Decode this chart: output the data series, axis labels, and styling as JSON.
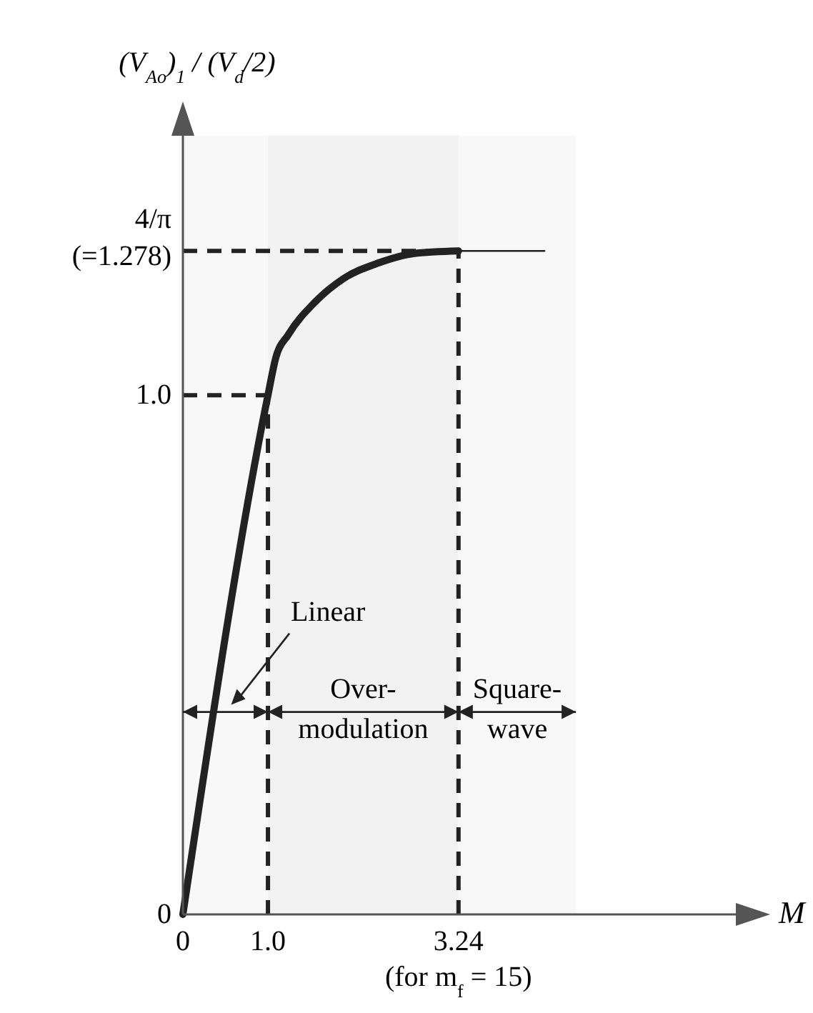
{
  "chart_data": {
    "type": "line",
    "ylabel": "(V$_{Ao}$)$_{1}$ / (V$_{d}$/2)",
    "xlabel": "M",
    "xlim": [
      0,
      6.5
    ],
    "ylim": [
      0,
      1.5
    ],
    "xticks": [
      0,
      {
        "value": 1,
        "label": "1.0"
      },
      3.24
    ],
    "yticks": [
      0,
      {
        "value": 1,
        "label": "1.0"
      },
      {
        "value": 1.278,
        "label": "4/π\n(=1.278)"
      }
    ],
    "series": [
      {
        "color": "#222222",
        "x": [
          0,
          1,
          1.09,
          1.24,
          1.55,
          1.89,
          2.3,
          2.71,
          3.24
        ],
        "values": [
          0,
          1,
          1.071,
          1.117,
          1.179,
          1.225,
          1.255,
          1.273,
          1.278
        ]
      },
      {
        "color": "#222222",
        "x": [
          3.24,
          4.25
        ],
        "values": [
          1.278,
          1.278
        ]
      }
    ],
    "ref_lines": [
      {
        "axis": "y",
        "value": 1
      },
      {
        "axis": "x",
        "value": 1
      },
      {
        "axis": "y",
        "value": 1.278
      },
      {
        "axis": "x",
        "value": 3.24
      }
    ],
    "bands": [
      {
        "axis": "x",
        "from": 0,
        "to": 1,
        "label": "Linear"
      },
      {
        "axis": "x",
        "from": 1,
        "to": 3.24,
        "label": "Over-\nmodulation"
      },
      {
        "axis": "x",
        "from": 3.24,
        "to": 4.62,
        "label": "Square-\nwave"
      }
    ],
    "annotations": [
      {
        "text": "(for m$_{f}$ = 15)",
        "x": 3.24,
        "y": 0
      }
    ],
    "line_style": "solid",
    "marker": "none",
    "grid": false
  }
}
